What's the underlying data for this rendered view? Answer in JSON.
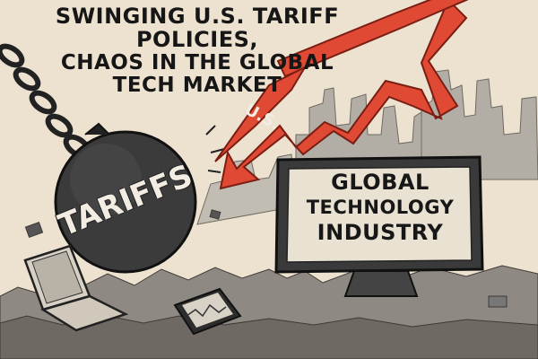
{
  "headline": {
    "line1": "SWINGING U.S. TARIFF POLICIES,",
    "line2": "CHAOS IN THE GLOBAL",
    "line3": "TECH MARKET"
  },
  "wrecking_ball": {
    "label": "TARIFFS"
  },
  "arrow": {
    "label": "U.S.",
    "color": "#e04a35"
  },
  "monitor": {
    "line1": "GLOBAL",
    "line2": "TECHNOLOGY",
    "line3": "INDUSTRY"
  },
  "colors": {
    "background": "#ede2cf",
    "ink": "#1c1c1c",
    "arrow_red": "#e04a35",
    "ruins": "#a9a49b"
  },
  "icons": [
    "chain-icon",
    "wrecking-ball-icon",
    "downward-arrow-icon",
    "laptop-icon",
    "smartphone-icon",
    "monitor-icon",
    "city-ruins-icon"
  ]
}
